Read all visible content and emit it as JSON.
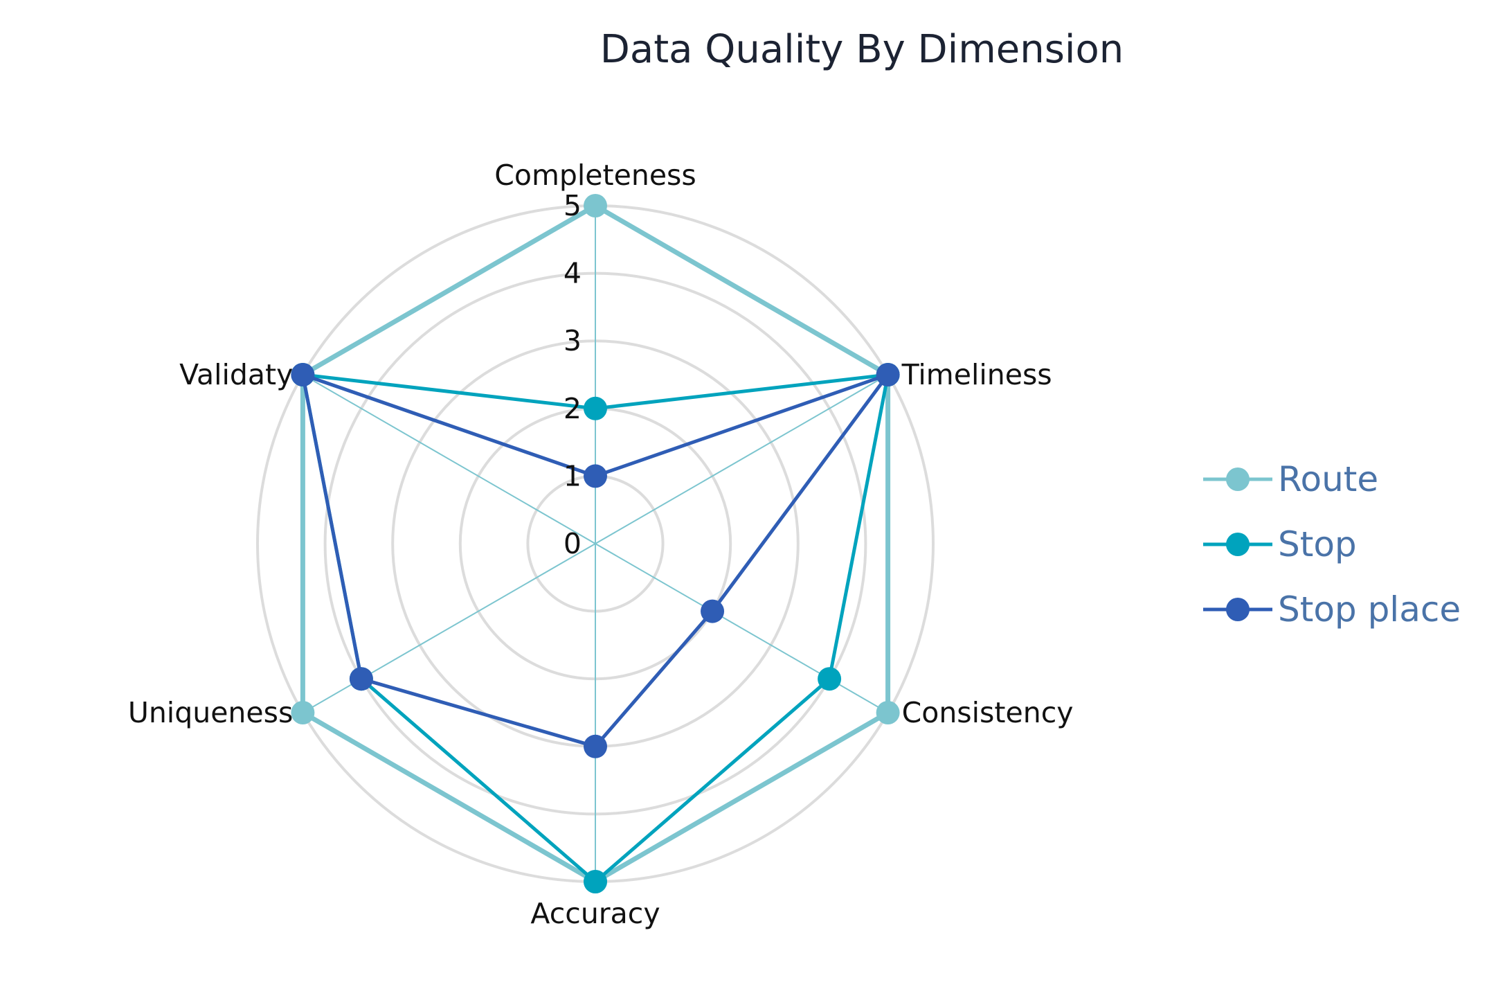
{
  "chart_data": {
    "type": "radar",
    "title": "Data Quality By Dimension",
    "categories": [
      "Completeness",
      "Timeliness",
      "Consistency",
      "Accuracy",
      "Uniqueness",
      "Validaty"
    ],
    "radial_range": [
      0,
      5
    ],
    "radial_ticks": [
      "0",
      "1",
      "2",
      "3",
      "4",
      "5"
    ],
    "grid": true,
    "legend_position": "right",
    "series": [
      {
        "name": "Route",
        "color": "#7cc5cf",
        "values": [
          5,
          5,
          5,
          5,
          5,
          5
        ]
      },
      {
        "name": "Stop",
        "color": "#00a3bd",
        "values": [
          2,
          5,
          4,
          5,
          4,
          5
        ]
      },
      {
        "name": "Stop place",
        "color": "#2f5db5",
        "values": [
          1,
          5,
          2,
          3,
          4,
          5
        ]
      }
    ],
    "colors": {
      "grid": "#dcdcdc",
      "spoke": "#7cc5cf",
      "legend_text": "#4a73a8"
    }
  }
}
